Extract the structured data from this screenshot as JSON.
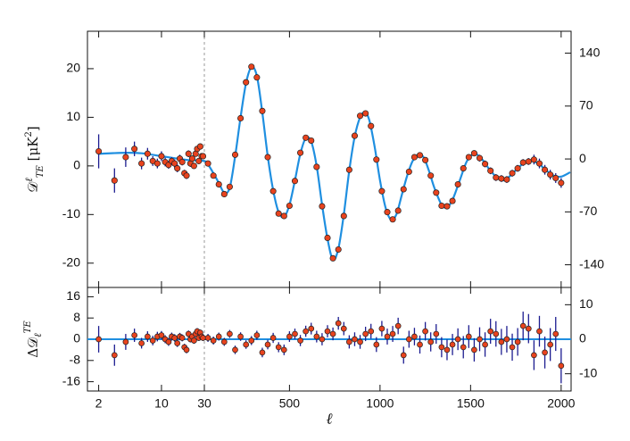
{
  "chart_data": [
    {
      "type": "scatter",
      "ylabel_parts": [
        "𝒟",
        "ℓ",
        "TE",
        " [μK",
        "2",
        "]"
      ],
      "xscale": "log-linear",
      "xbreak": 30,
      "xlim": [
        1.5,
        2055
      ],
      "xticks": [
        2,
        10,
        30,
        500,
        1000,
        1500,
        2000
      ],
      "xtick_labels": false,
      "ylim": [
        -25,
        27.7
      ],
      "yticks": [
        -20,
        -10,
        0,
        10,
        20
      ],
      "y2lim": [
        -170,
        169
      ],
      "y2ticks": [
        -140,
        -70,
        0,
        70,
        140
      ],
      "color": "#e8431e",
      "error_color": "#1c1c90",
      "x": [
        2,
        3,
        4,
        5,
        6,
        7,
        8,
        9,
        10,
        11,
        12,
        13,
        14,
        15,
        16,
        17,
        18,
        19,
        20,
        21,
        22,
        23,
        24,
        25,
        26,
        27,
        28,
        29,
        50,
        80,
        110,
        140,
        170,
        200,
        230,
        260,
        290,
        320,
        350,
        380,
        410,
        440,
        470,
        500,
        530,
        560,
        590,
        620,
        650,
        680,
        710,
        740,
        770,
        800,
        830,
        860,
        890,
        920,
        950,
        980,
        1010,
        1040,
        1070,
        1100,
        1130,
        1160,
        1190,
        1220,
        1250,
        1280,
        1310,
        1340,
        1370,
        1400,
        1430,
        1460,
        1490,
        1520,
        1550,
        1580,
        1610,
        1640,
        1670,
        1700,
        1730,
        1760,
        1790,
        1820,
        1850,
        1880,
        1910,
        1940,
        1970,
        2000
      ],
      "values": [
        3.0,
        -3.0,
        1.8,
        3.5,
        0.5,
        2.5,
        1.0,
        0.5,
        2.0,
        0.8,
        0.2,
        1.0,
        0.5,
        -0.5,
        1.5,
        0.8,
        -1.5,
        -2.0,
        2.5,
        0.5,
        1.5,
        0.0,
        2.5,
        3.5,
        1.0,
        4.0,
        2.0,
        2.0,
        0.5,
        -2.0,
        -3.8,
        -5.8,
        -4.3,
        2.3,
        9.8,
        17.2,
        20.4,
        18.2,
        11.3,
        1.8,
        -5.2,
        -9.8,
        -10.3,
        -8.2,
        -3.1,
        2.7,
        5.8,
        5.2,
        -0.2,
        -8.3,
        -14.8,
        -19.0,
        -17.2,
        -10.3,
        -0.8,
        6.2,
        10.3,
        10.8,
        8.2,
        1.3,
        -5.2,
        -9.5,
        -11.0,
        -9.2,
        -4.8,
        -1.2,
        1.8,
        2.2,
        1.2,
        -2.0,
        -5.5,
        -8.2,
        -8.3,
        -7.2,
        -3.8,
        -0.5,
        1.8,
        2.6,
        1.6,
        0.4,
        -1.0,
        -2.4,
        -2.6,
        -2.8,
        -1.5,
        -0.5,
        0.7,
        0.9,
        1.3,
        0.5,
        -0.8,
        -1.8,
        -2.5,
        -3.5
      ],
      "errors": [
        3.5,
        2.5,
        2,
        1.5,
        1.2,
        1.2,
        1,
        1,
        1,
        0.9,
        0.8,
        0.8,
        0.8,
        0.8,
        0.8,
        0.7,
        0.7,
        0.7,
        0.7,
        0.7,
        0.6,
        0.6,
        0.6,
        0.6,
        0.6,
        0.6,
        0.6,
        0.6,
        0.4,
        0.4,
        0.4,
        0.4,
        0.4,
        0.4,
        0.4,
        0.4,
        0.4,
        0.4,
        0.4,
        0.4,
        0.4,
        0.4,
        0.4,
        0.4,
        0.4,
        0.4,
        0.4,
        0.4,
        0.4,
        0.4,
        0.4,
        0.4,
        0.4,
        0.4,
        0.4,
        0.4,
        0.4,
        0.4,
        0.5,
        0.5,
        0.5,
        0.5,
        0.5,
        0.5,
        0.5,
        0.5,
        0.5,
        0.5,
        0.5,
        0.5,
        0.5,
        0.5,
        0.5,
        0.5,
        0.5,
        0.5,
        0.5,
        0.5,
        0.7,
        0.7,
        0.7,
        0.7,
        0.7,
        0.7,
        0.7,
        0.7,
        0.7,
        0.7,
        1.0,
        1.0,
        1.0,
        1.0,
        1.0,
        1.0
      ],
      "model": {
        "color": "#1f8fe0",
        "x": [
          2,
          4,
          6,
          10,
          15,
          20,
          30,
          50,
          80,
          110,
          140,
          170,
          200,
          230,
          260,
          290,
          320,
          350,
          380,
          410,
          440,
          470,
          500,
          530,
          560,
          590,
          620,
          650,
          680,
          710,
          740,
          770,
          800,
          830,
          860,
          890,
          915,
          940,
          970,
          1000,
          1030,
          1060,
          1090,
          1120,
          1150,
          1180,
          1210,
          1240,
          1270,
          1300,
          1340,
          1370,
          1400,
          1440,
          1480,
          1520,
          1560,
          1600,
          1640,
          1680,
          1720,
          1760,
          1800,
          1840,
          1880,
          1920,
          1960,
          2000,
          2050
        ],
        "values": [
          2.5,
          2.7,
          2.6,
          2.0,
          1.5,
          1.2,
          1.0,
          0.3,
          -1.5,
          -3.5,
          -5.5,
          -4.5,
          2,
          10,
          17,
          20.3,
          18.5,
          11,
          2,
          -5,
          -9.5,
          -10.5,
          -8,
          -3,
          2.5,
          5.7,
          5,
          0,
          -8,
          -15,
          -19.3,
          -17,
          -10,
          -1,
          6,
          10,
          11,
          9.5,
          4,
          -3,
          -8.5,
          -11,
          -10,
          -6,
          -2,
          1,
          2.3,
          1.8,
          -1,
          -4.5,
          -8,
          -8.5,
          -7,
          -3,
          1,
          2.5,
          1.5,
          -0.5,
          -2.2,
          -3,
          -2,
          -0.5,
          0.7,
          1,
          0.3,
          -1,
          -2,
          -2.2,
          -1.3
        ]
      }
    },
    {
      "type": "scatter",
      "ylabel_parts": [
        "Δ𝒟",
        "ℓ",
        "TE"
      ],
      "xlabel": "ℓ",
      "xscale": "log-linear",
      "xbreak": 30,
      "xlim": [
        1.5,
        2055
      ],
      "xticks": [
        2,
        10,
        30,
        500,
        1000,
        1500,
        2000
      ],
      "xtick_labels": true,
      "ylim": [
        -19.5,
        19.5
      ],
      "yticks": [
        -16,
        -8,
        0,
        8,
        16
      ],
      "y2lim": [
        -15,
        15
      ],
      "y2ticks": [
        -10,
        0,
        10
      ],
      "color": "#e8431e",
      "error_color": "#1c1c90",
      "reference_line": 0,
      "reference_color": "#1f8fe0",
      "x": [
        2,
        3,
        4,
        5,
        6,
        7,
        8,
        9,
        10,
        11,
        12,
        13,
        14,
        15,
        16,
        17,
        18,
        19,
        20,
        21,
        22,
        23,
        24,
        25,
        26,
        27,
        28,
        29,
        50,
        80,
        110,
        140,
        170,
        200,
        230,
        260,
        290,
        320,
        350,
        380,
        410,
        440,
        470,
        500,
        530,
        560,
        590,
        620,
        650,
        680,
        710,
        740,
        770,
        800,
        830,
        860,
        890,
        920,
        950,
        980,
        1010,
        1040,
        1070,
        1100,
        1130,
        1160,
        1190,
        1220,
        1250,
        1280,
        1310,
        1340,
        1370,
        1400,
        1430,
        1460,
        1490,
        1520,
        1550,
        1580,
        1610,
        1640,
        1670,
        1700,
        1730,
        1760,
        1790,
        1820,
        1850,
        1880,
        1910,
        1940,
        1970,
        2000
      ],
      "values": [
        0,
        -6,
        -1,
        1.5,
        -1.5,
        1,
        -0.5,
        1,
        1.5,
        0,
        -1,
        1,
        0.5,
        -1.5,
        1,
        0.5,
        -3,
        -4,
        2,
        0,
        1,
        -0.5,
        2,
        3,
        0.5,
        2.5,
        1,
        0.5,
        0.5,
        -0.5,
        1,
        -1,
        2,
        -4,
        1,
        -2,
        -0.5,
        1.5,
        -5,
        -2,
        0.5,
        -3,
        -4,
        1,
        2,
        -0.5,
        3,
        4,
        1,
        0,
        3,
        2,
        6,
        4,
        -1,
        0,
        -1,
        2,
        3,
        -2,
        4,
        1,
        2,
        5,
        -6,
        0,
        1,
        -2,
        3,
        -1,
        2,
        -3,
        -4,
        -2,
        0,
        -3,
        1,
        -4,
        0,
        -2,
        3,
        2,
        -1,
        0,
        -3,
        -1,
        5,
        4,
        -6,
        3,
        -5,
        -2,
        2,
        -10
      ],
      "errors": [
        5,
        4,
        3,
        2.5,
        2,
        2,
        1.8,
        1.8,
        1.6,
        1.5,
        1.5,
        1.5,
        1.4,
        1.4,
        1.4,
        1.3,
        1.3,
        1.3,
        1.3,
        1.2,
        1.2,
        1.2,
        1.2,
        1.2,
        1.1,
        1.1,
        1.1,
        1.1,
        1.5,
        1.5,
        1.5,
        1.5,
        1.5,
        1.6,
        1.6,
        1.6,
        1.7,
        1.7,
        1.8,
        1.8,
        1.9,
        1.9,
        2,
        2,
        2,
        2.1,
        2.1,
        2.2,
        2.2,
        2.3,
        2.3,
        2.4,
        2.4,
        2.5,
        2.5,
        2.6,
        2.6,
        2.7,
        2.8,
        2.8,
        2.9,
        3,
        3,
        3.1,
        3.2,
        3.2,
        3.3,
        3.4,
        3.5,
        3.6,
        3.7,
        3.8,
        3.9,
        4,
        4.1,
        4.2,
        4.3,
        4.4,
        4.5,
        4.6,
        4.7,
        4.8,
        4.9,
        5,
        5.1,
        5.2,
        5.4,
        5.5,
        5.6,
        5.8,
        6,
        6.2,
        6.4,
        6.6
      ]
    }
  ]
}
